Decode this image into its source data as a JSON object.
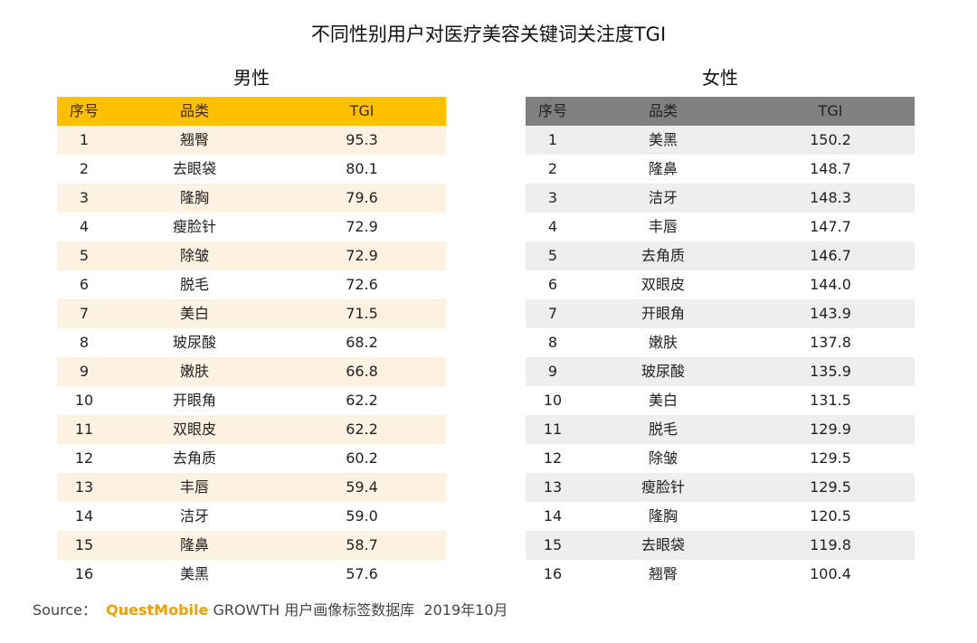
{
  "title": "不同性别用户对医疗美容关键词关注度TGI",
  "tables": [
    {
      "heading": "男性",
      "columns": [
        "序号",
        "品类",
        "TGI"
      ],
      "rows": [
        [
          "1",
          "翘臀",
          "95.3"
        ],
        [
          "2",
          "去眼袋",
          "80.1"
        ],
        [
          "3",
          "隆胸",
          "79.6"
        ],
        [
          "4",
          "瘦脸针",
          "72.9"
        ],
        [
          "5",
          "除皱",
          "72.9"
        ],
        [
          "6",
          "脱毛",
          "72.6"
        ],
        [
          "7",
          "美白",
          "71.5"
        ],
        [
          "8",
          "玻尿酸",
          "68.2"
        ],
        [
          "9",
          "嫩肤",
          "66.8"
        ],
        [
          "10",
          "开眼角",
          "62.2"
        ],
        [
          "11",
          "双眼皮",
          "62.2"
        ],
        [
          "12",
          "去角质",
          "60.2"
        ],
        [
          "13",
          "丰唇",
          "59.4"
        ],
        [
          "14",
          "洁牙",
          "59.0"
        ],
        [
          "15",
          "隆鼻",
          "58.7"
        ],
        [
          "16",
          "美黑",
          "57.6"
        ]
      ]
    },
    {
      "heading": "女性",
      "columns": [
        "序号",
        "品类",
        "TGI"
      ],
      "rows": [
        [
          "1",
          "美黑",
          "150.2"
        ],
        [
          "2",
          "隆鼻",
          "148.7"
        ],
        [
          "3",
          "洁牙",
          "148.3"
        ],
        [
          "4",
          "丰唇",
          "147.7"
        ],
        [
          "5",
          "去角质",
          "146.7"
        ],
        [
          "6",
          "双眼皮",
          "144.0"
        ],
        [
          "7",
          "开眼角",
          "143.9"
        ],
        [
          "8",
          "嫩肤",
          "137.8"
        ],
        [
          "9",
          "玻尿酸",
          "135.9"
        ],
        [
          "10",
          "美白",
          "131.5"
        ],
        [
          "11",
          "脱毛",
          "129.9"
        ],
        [
          "12",
          "除皱",
          "129.5"
        ],
        [
          "13",
          "瘦脸针",
          "129.5"
        ],
        [
          "14",
          "隆胸",
          "120.5"
        ],
        [
          "15",
          "去眼袋",
          "119.8"
        ],
        [
          "16",
          "翘臀",
          "100.4"
        ]
      ]
    }
  ],
  "source": {
    "label": "Source：",
    "brand": "QuestMobile",
    "text": "GROWTH 用户画像标签数据库  2019年10月"
  }
}
